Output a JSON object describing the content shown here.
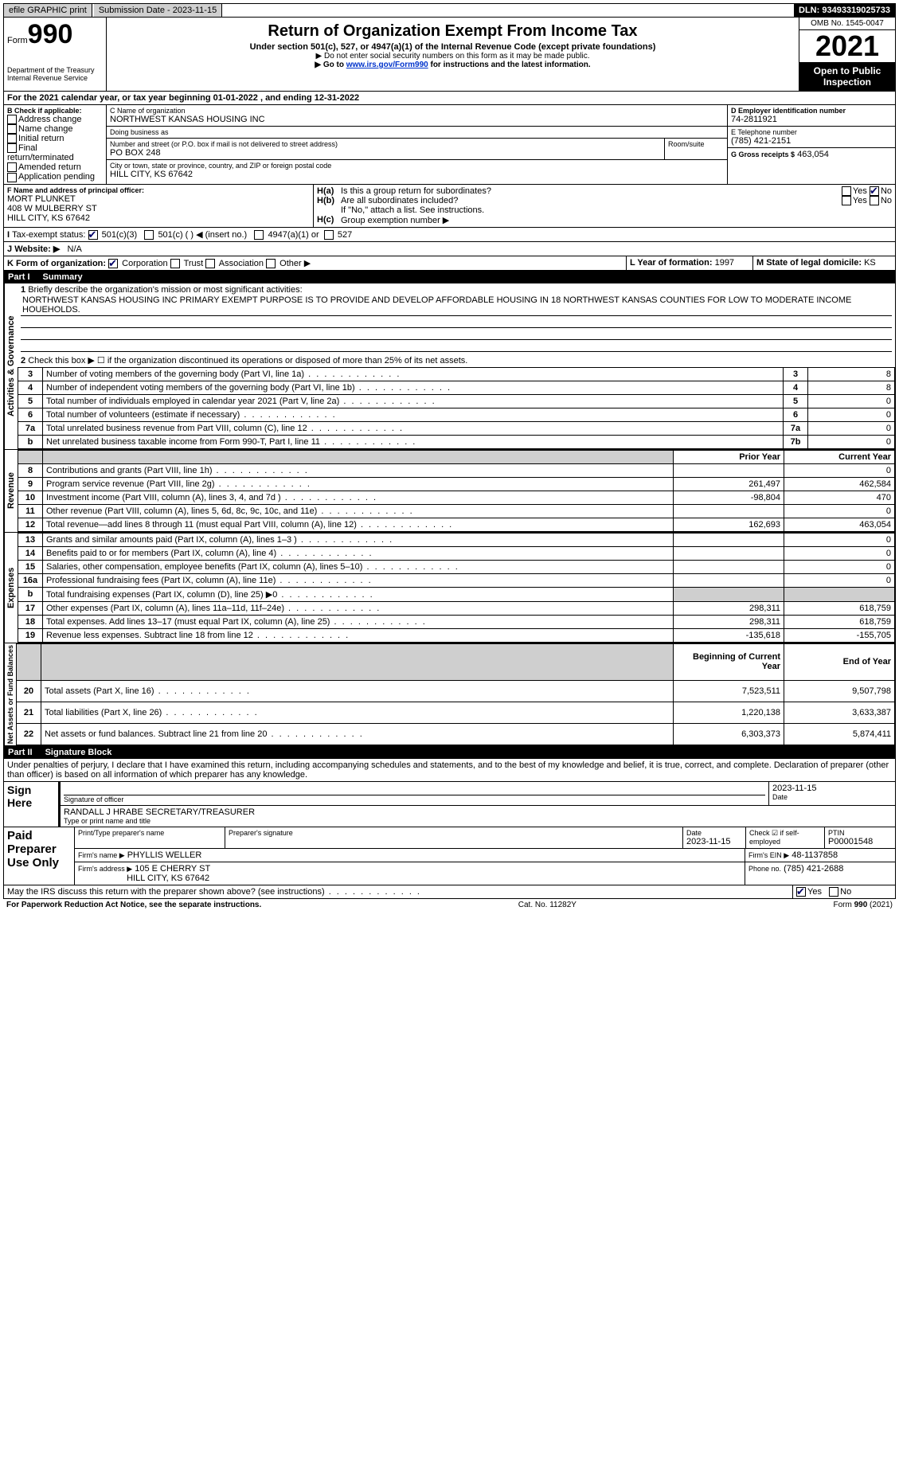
{
  "top_bar": {
    "efile": "efile GRAPHIC print",
    "submission": "Submission Date - 2023-11-15",
    "dln": "DLN: 93493319025733"
  },
  "header": {
    "form_label": "Form",
    "form_number": "990",
    "dept": "Department of the Treasury Internal Revenue Service",
    "title": "Return of Organization Exempt From Income Tax",
    "subtitle": "Under section 501(c), 527, or 4947(a)(1) of the Internal Revenue Code (except private foundations)",
    "note1": "Do not enter social security numbers on this form as it may be made public.",
    "note2_pre": "Go to ",
    "note2_link": "www.irs.gov/Form990",
    "note2_post": " for instructions and the latest information.",
    "omb": "OMB No. 1545-0047",
    "year": "2021",
    "inspect": "Open to Public Inspection"
  },
  "line_a": {
    "text": "For the 2021 calendar year, or tax year beginning ",
    "begin": "01-01-2022",
    "mid": " , and ending ",
    "end": "12-31-2022"
  },
  "section_b": {
    "label": "B Check if applicable:",
    "opts": [
      "Address change",
      "Name change",
      "Initial return",
      "Final return/terminated",
      "Amended return",
      "Application pending"
    ]
  },
  "section_c": {
    "name_lbl": "C Name of organization",
    "name": "NORTHWEST KANSAS HOUSING INC",
    "dba_lbl": "Doing business as",
    "dba": "",
    "street_lbl": "Number and street (or P.O. box if mail is not delivered to street address)",
    "room_lbl": "Room/suite",
    "street": "PO BOX 248",
    "city_lbl": "City or town, state or province, country, and ZIP or foreign postal code",
    "city": "HILL CITY, KS  67642"
  },
  "section_d": {
    "lbl": "D Employer identification number",
    "val": "74-2811921"
  },
  "section_e": {
    "lbl": "E Telephone number",
    "val": "(785) 421-2151"
  },
  "section_g": {
    "lbl": "G Gross receipts $",
    "val": "463,054"
  },
  "section_f": {
    "lbl": "F Name and address of principal officer:",
    "line1": "MORT PLUNKET",
    "line2": "408 W MULBERRY ST",
    "line3": "HILL CITY, KS  67642"
  },
  "section_h": {
    "a": "Is this a group return for subordinates?",
    "b": "Are all subordinates included?",
    "note": "If \"No,\" attach a list. See instructions.",
    "c": "Group exemption number ▶"
  },
  "section_i": {
    "lbl": "Tax-exempt status:",
    "opts": [
      "501(c)(3)",
      "501(c) (  ) ◀ (insert no.)",
      "4947(a)(1) or",
      "527"
    ]
  },
  "section_j": {
    "lbl": "Website: ▶",
    "val": "N/A"
  },
  "section_k": {
    "lbl": "K Form of organization:",
    "opts": [
      "Corporation",
      "Trust",
      "Association",
      "Other ▶"
    ]
  },
  "section_l": {
    "lbl": "L Year of formation:",
    "val": "1997"
  },
  "section_m": {
    "lbl": "M State of legal domicile:",
    "val": "KS"
  },
  "part1": {
    "no": "Part I",
    "title": "Summary"
  },
  "mission": {
    "lbl": "Briefly describe the organization's mission or most significant activities:",
    "text": "NORTHWEST KANSAS HOUSING INC PRIMARY EXEMPT PURPOSE IS TO PROVIDE AND DEVELOP AFFORDABLE HOUSING IN 18 NORTHWEST KANSAS COUNTIES FOR LOW TO MODERATE INCOME HOUEHOLDS."
  },
  "line2": "Check this box ▶ ☐ if the organization discontinued its operations or disposed of more than 25% of its net assets.",
  "gov_lines": [
    {
      "n": "3",
      "d": "Number of voting members of the governing body (Part VI, line 1a)",
      "box": "3",
      "v": "8"
    },
    {
      "n": "4",
      "d": "Number of independent voting members of the governing body (Part VI, line 1b)",
      "box": "4",
      "v": "8"
    },
    {
      "n": "5",
      "d": "Total number of individuals employed in calendar year 2021 (Part V, line 2a)",
      "box": "5",
      "v": "0"
    },
    {
      "n": "6",
      "d": "Total number of volunteers (estimate if necessary)",
      "box": "6",
      "v": "0"
    },
    {
      "n": "7a",
      "d": "Total unrelated business revenue from Part VIII, column (C), line 12",
      "box": "7a",
      "v": "0"
    },
    {
      "n": "b",
      "d": "Net unrelated business taxable income from Form 990-T, Part I, line 11",
      "box": "7b",
      "v": "0"
    }
  ],
  "col_hdr": {
    "prior": "Prior Year",
    "current": "Current Year"
  },
  "revenue": [
    {
      "n": "8",
      "d": "Contributions and grants (Part VIII, line 1h)",
      "p": "",
      "c": "0"
    },
    {
      "n": "9",
      "d": "Program service revenue (Part VIII, line 2g)",
      "p": "261,497",
      "c": "462,584"
    },
    {
      "n": "10",
      "d": "Investment income (Part VIII, column (A), lines 3, 4, and 7d )",
      "p": "-98,804",
      "c": "470"
    },
    {
      "n": "11",
      "d": "Other revenue (Part VIII, column (A), lines 5, 6d, 8c, 9c, 10c, and 11e)",
      "p": "",
      "c": "0"
    },
    {
      "n": "12",
      "d": "Total revenue—add lines 8 through 11 (must equal Part VIII, column (A), line 12)",
      "p": "162,693",
      "c": "463,054"
    }
  ],
  "expenses": [
    {
      "n": "13",
      "d": "Grants and similar amounts paid (Part IX, column (A), lines 1–3 )",
      "p": "",
      "c": "0"
    },
    {
      "n": "14",
      "d": "Benefits paid to or for members (Part IX, column (A), line 4)",
      "p": "",
      "c": "0"
    },
    {
      "n": "15",
      "d": "Salaries, other compensation, employee benefits (Part IX, column (A), lines 5–10)",
      "p": "",
      "c": "0"
    },
    {
      "n": "16a",
      "d": "Professional fundraising fees (Part IX, column (A), line 11e)",
      "p": "",
      "c": "0"
    },
    {
      "n": "b",
      "d": "Total fundraising expenses (Part IX, column (D), line 25) ▶0",
      "p": "SHADE",
      "c": "SHADE"
    },
    {
      "n": "17",
      "d": "Other expenses (Part IX, column (A), lines 11a–11d, 11f–24e)",
      "p": "298,311",
      "c": "618,759"
    },
    {
      "n": "18",
      "d": "Total expenses. Add lines 13–17 (must equal Part IX, column (A), line 25)",
      "p": "298,311",
      "c": "618,759"
    },
    {
      "n": "19",
      "d": "Revenue less expenses. Subtract line 18 from line 12",
      "p": "-135,618",
      "c": "-155,705"
    }
  ],
  "na_hdr": {
    "begin": "Beginning of Current Year",
    "end": "End of Year"
  },
  "netassets": [
    {
      "n": "20",
      "d": "Total assets (Part X, line 16)",
      "p": "7,523,511",
      "c": "9,507,798"
    },
    {
      "n": "21",
      "d": "Total liabilities (Part X, line 26)",
      "p": "1,220,138",
      "c": "3,633,387"
    },
    {
      "n": "22",
      "d": "Net assets or fund balances. Subtract line 21 from line 20",
      "p": "6,303,373",
      "c": "5,874,411"
    }
  ],
  "part2": {
    "no": "Part II",
    "title": "Signature Block"
  },
  "perjury": "Under penalties of perjury, I declare that I have examined this return, including accompanying schedules and statements, and to the best of my knowledge and belief, it is true, correct, and complete. Declaration of preparer (other than officer) is based on all information of which preparer has any knowledge.",
  "sign": {
    "here": "Sign Here",
    "sig_lbl": "Signature of officer",
    "date_lbl": "Date",
    "date": "2023-11-15",
    "name": "RANDALL J HRABE SECRETARY/TREASURER",
    "name_lbl": "Type or print name and title"
  },
  "paid": {
    "here": "Paid Preparer Use Only",
    "col1": "Print/Type preparer's name",
    "col2": "Preparer's signature",
    "col3_lbl": "Date",
    "col3": "2023-11-15",
    "col4_lbl": "Check ☑ if self-employed",
    "col5_lbl": "PTIN",
    "col5": "P00001548",
    "firm_name_lbl": "Firm's name   ▶",
    "firm_name": "PHYLLIS WELLER",
    "firm_ein_lbl": "Firm's EIN ▶",
    "firm_ein": "48-1137858",
    "firm_addr_lbl": "Firm's address ▶",
    "firm_addr1": "105 E CHERRY ST",
    "firm_addr2": "HILL CITY, KS  67642",
    "phone_lbl": "Phone no.",
    "phone": "(785) 421-2688"
  },
  "discuss": "May the IRS discuss this return with the preparer shown above? (see instructions)",
  "footer": {
    "left": "For Paperwork Reduction Act Notice, see the separate instructions.",
    "mid": "Cat. No. 11282Y",
    "right": "Form 990 (2021)"
  },
  "yes": "Yes",
  "no": "No"
}
